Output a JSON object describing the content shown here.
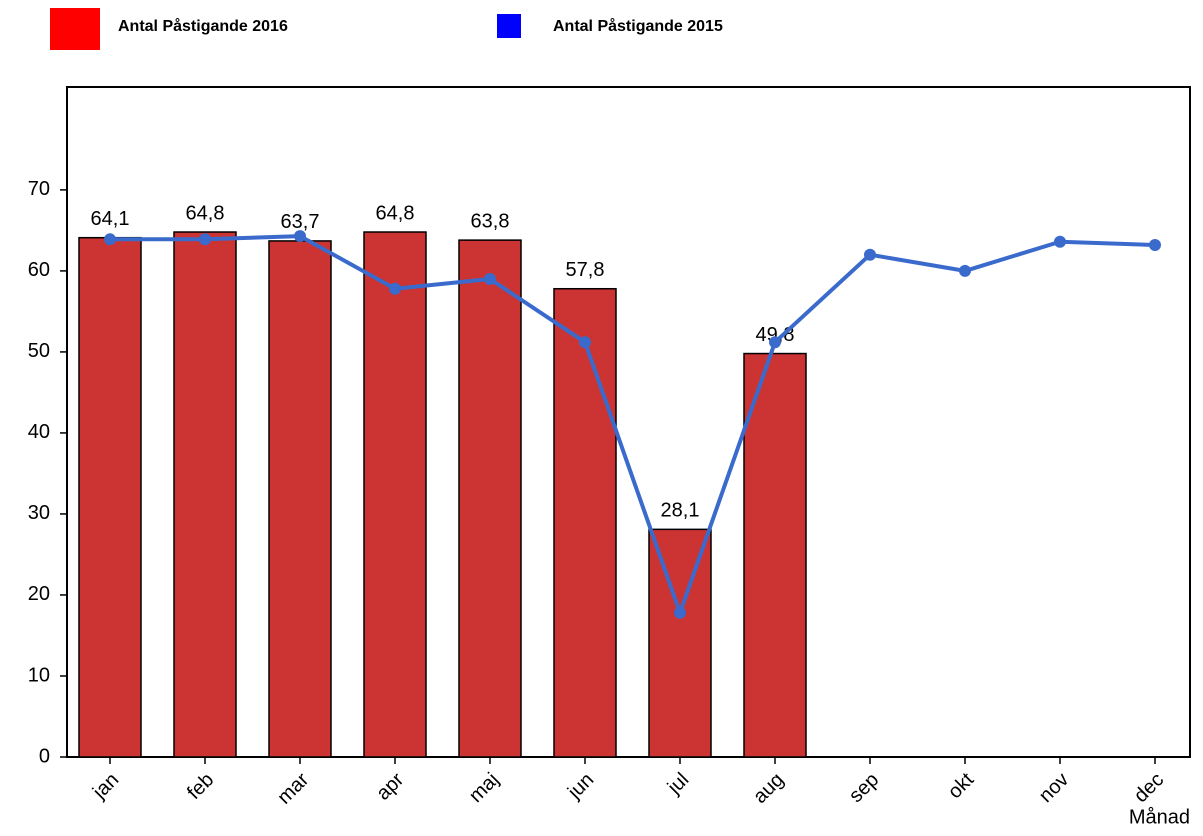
{
  "chart_data": {
    "type": "bar_line",
    "x_label": "Månad",
    "categories": [
      "jan",
      "feb",
      "mar",
      "apr",
      "maj",
      "jun",
      "jul",
      "aug",
      "sep",
      "okt",
      "nov",
      "dec"
    ],
    "series": [
      {
        "name": "Antal Påstigande 2016",
        "type": "bar",
        "color": "#cc3333",
        "legend_color": "#ff0000",
        "values": [
          64.1,
          64.8,
          63.7,
          64.8,
          63.8,
          57.8,
          28.1,
          49.8,
          null,
          null,
          null,
          null
        ],
        "value_labels": [
          "64,1",
          "64,8",
          "63,7",
          "64,8",
          "63,8",
          "57,8",
          "28,1",
          "49,8",
          null,
          null,
          null,
          null
        ]
      },
      {
        "name": "Antal Påstigande 2015",
        "type": "line",
        "color": "#3a6bcc",
        "legend_color": "#0000ff",
        "values": [
          63.9,
          63.9,
          64.3,
          57.8,
          59.0,
          51.2,
          17.8,
          51.2,
          62.0,
          60.0,
          63.6,
          63.2
        ]
      }
    ],
    "ylim": [
      0,
      82.7
    ],
    "yticks": [
      0,
      10,
      20,
      30,
      40,
      50,
      60,
      70
    ],
    "grid": false
  }
}
